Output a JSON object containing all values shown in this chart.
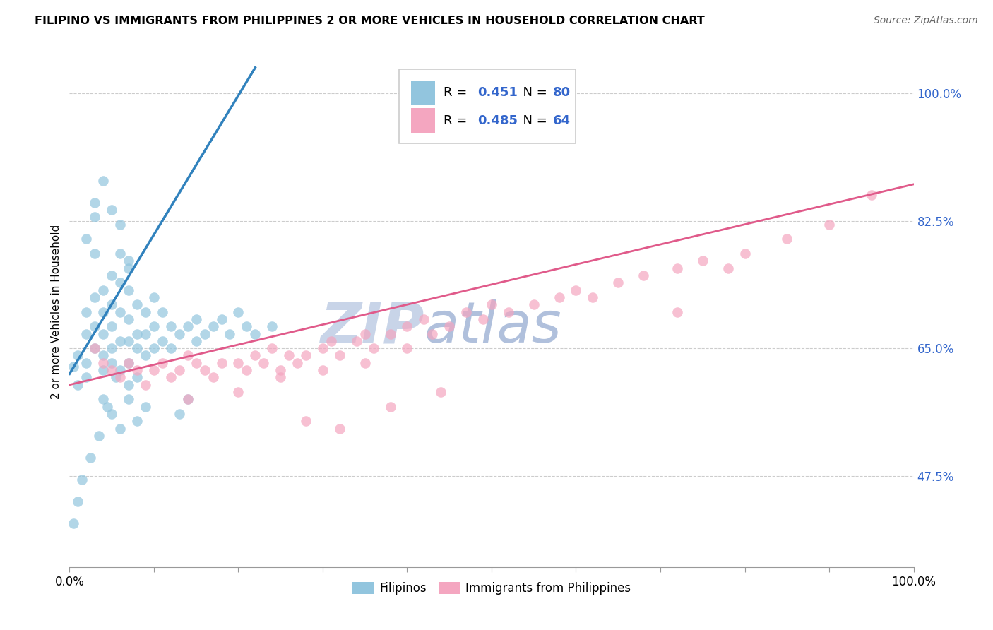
{
  "title": "FILIPINO VS IMMIGRANTS FROM PHILIPPINES 2 OR MORE VEHICLES IN HOUSEHOLD CORRELATION CHART",
  "source": "Source: ZipAtlas.com",
  "ylabel": "2 or more Vehicles in Household",
  "legend_label1": "Filipinos",
  "legend_label2": "Immigrants from Philippines",
  "R1": 0.451,
  "N1": 80,
  "R2": 0.485,
  "N2": 64,
  "color_blue": "#92c5de",
  "color_pink": "#f4a6c0",
  "color_blue_line": "#3182bd",
  "color_pink_line": "#e05a8a",
  "color_watermark_zip": "#c8d4e8",
  "color_watermark_atlas": "#b8c8e0",
  "color_rn_text": "#3366cc",
  "xlim": [
    0.0,
    1.0
  ],
  "ylim": [
    0.35,
    1.05
  ],
  "ytick_vals": [
    0.475,
    0.65,
    0.825,
    1.0
  ],
  "ytick_labels": [
    "47.5%",
    "65.0%",
    "82.5%",
    "100.0%"
  ],
  "xtick_vals": [
    0.0,
    0.1,
    0.2,
    0.3,
    0.4,
    0.5,
    0.6,
    0.7,
    0.8,
    0.9,
    1.0
  ],
  "blue_x": [
    0.005,
    0.01,
    0.01,
    0.02,
    0.02,
    0.02,
    0.02,
    0.03,
    0.03,
    0.03,
    0.03,
    0.03,
    0.04,
    0.04,
    0.04,
    0.04,
    0.04,
    0.05,
    0.05,
    0.05,
    0.05,
    0.05,
    0.06,
    0.06,
    0.06,
    0.06,
    0.07,
    0.07,
    0.07,
    0.07,
    0.07,
    0.08,
    0.08,
    0.08,
    0.09,
    0.09,
    0.09,
    0.1,
    0.1,
    0.1,
    0.11,
    0.11,
    0.12,
    0.12,
    0.13,
    0.14,
    0.15,
    0.15,
    0.16,
    0.17,
    0.18,
    0.19,
    0.2,
    0.21,
    0.22,
    0.24,
    0.13,
    0.14,
    0.02,
    0.03,
    0.04,
    0.05,
    0.06,
    0.04,
    0.05,
    0.06,
    0.07,
    0.08,
    0.09,
    0.07,
    0.08,
    0.06,
    0.07,
    0.005,
    0.01,
    0.015,
    0.025,
    0.035,
    0.045,
    0.055
  ],
  "blue_y": [
    0.625,
    0.64,
    0.6,
    0.63,
    0.67,
    0.7,
    0.61,
    0.65,
    0.68,
    0.72,
    0.78,
    0.83,
    0.64,
    0.67,
    0.7,
    0.73,
    0.62,
    0.65,
    0.68,
    0.71,
    0.75,
    0.63,
    0.66,
    0.7,
    0.74,
    0.62,
    0.66,
    0.69,
    0.73,
    0.76,
    0.63,
    0.67,
    0.71,
    0.65,
    0.67,
    0.7,
    0.64,
    0.68,
    0.72,
    0.65,
    0.66,
    0.7,
    0.68,
    0.65,
    0.67,
    0.68,
    0.69,
    0.66,
    0.67,
    0.68,
    0.69,
    0.67,
    0.7,
    0.68,
    0.67,
    0.68,
    0.56,
    0.58,
    0.8,
    0.85,
    0.88,
    0.84,
    0.78,
    0.58,
    0.56,
    0.54,
    0.58,
    0.55,
    0.57,
    0.6,
    0.61,
    0.82,
    0.77,
    0.41,
    0.44,
    0.47,
    0.5,
    0.53,
    0.57,
    0.61
  ],
  "pink_x": [
    0.03,
    0.04,
    0.05,
    0.06,
    0.07,
    0.08,
    0.09,
    0.1,
    0.11,
    0.12,
    0.13,
    0.14,
    0.15,
    0.16,
    0.17,
    0.18,
    0.2,
    0.21,
    0.22,
    0.23,
    0.24,
    0.25,
    0.26,
    0.27,
    0.28,
    0.3,
    0.31,
    0.32,
    0.34,
    0.35,
    0.36,
    0.38,
    0.4,
    0.42,
    0.43,
    0.45,
    0.47,
    0.49,
    0.5,
    0.52,
    0.55,
    0.58,
    0.6,
    0.62,
    0.65,
    0.68,
    0.72,
    0.75,
    0.78,
    0.8,
    0.85,
    0.9,
    0.95,
    0.72,
    0.14,
    0.2,
    0.25,
    0.3,
    0.35,
    0.4,
    0.28,
    0.32,
    0.38,
    0.44
  ],
  "pink_y": [
    0.65,
    0.63,
    0.62,
    0.61,
    0.63,
    0.62,
    0.6,
    0.62,
    0.63,
    0.61,
    0.62,
    0.64,
    0.63,
    0.62,
    0.61,
    0.63,
    0.63,
    0.62,
    0.64,
    0.63,
    0.65,
    0.62,
    0.64,
    0.63,
    0.64,
    0.65,
    0.66,
    0.64,
    0.66,
    0.67,
    0.65,
    0.67,
    0.68,
    0.69,
    0.67,
    0.68,
    0.7,
    0.69,
    0.71,
    0.7,
    0.71,
    0.72,
    0.73,
    0.72,
    0.74,
    0.75,
    0.76,
    0.77,
    0.76,
    0.78,
    0.8,
    0.82,
    0.86,
    0.7,
    0.58,
    0.59,
    0.61,
    0.62,
    0.63,
    0.65,
    0.55,
    0.54,
    0.57,
    0.59
  ]
}
